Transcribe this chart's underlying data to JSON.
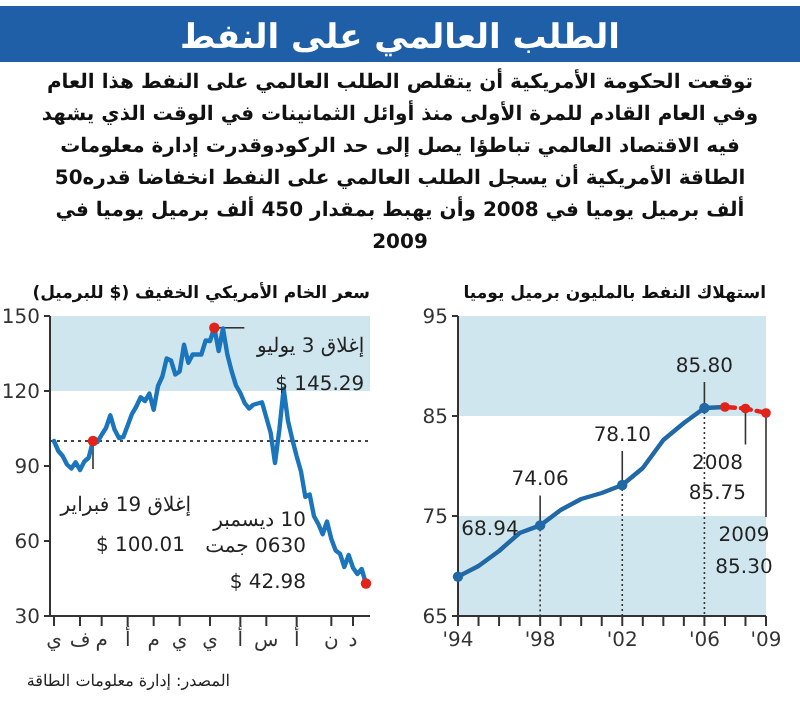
{
  "chart_data": [
    {
      "type": "other",
      "title": "الطلب العالمي على النفط",
      "subtitle": "توقعت الحكومة الأمريكية أن يتقلص الطلب العالمي على النفط هذا العام وفي العام القادم للمرة الأولى منذ أوائل الثمانينات في الوقت الذي يشهد فيه الاقتصاد العالمي تباطؤا يصل إلى حد الركودوقدرت إدارة معلومات الطاقة الأمريكية أن يسجل الطلب العالمي على النفط انخفاضا قدره50 ألف برميل يوميا في 2008 وأن يهبط بمقدار 450 ألف برميل يوميا في 2009",
      "annotations": [
        "المصدر: إدارة معلومات الطاقة"
      ]
    },
    {
      "type": "line",
      "title": "سعر الخام الأمريكي الخفيف ($ للبرميل)",
      "categories": [
        "ي",
        null,
        null,
        null,
        null,
        null,
        "ف",
        null,
        null,
        null,
        null,
        "م",
        null,
        null,
        null,
        null,
        null,
        "أ",
        null,
        null,
        null,
        null,
        null,
        "م",
        null,
        null,
        null,
        null,
        null,
        "ي",
        null,
        null,
        null,
        null,
        null,
        null,
        "ي",
        null,
        null,
        null,
        null,
        null,
        null,
        "أ",
        null,
        null,
        null,
        null,
        null,
        "س",
        null,
        null,
        null,
        null,
        null,
        null,
        "أ",
        null,
        null,
        null,
        null,
        null,
        null,
        null,
        "ن",
        null,
        null,
        null,
        null,
        "د",
        null,
        null,
        null
      ],
      "series": [
        {
          "color": "#1b75bc",
          "values": [
            100,
            96,
            94,
            90.6,
            89,
            91.5,
            88.4,
            91.8,
            93.3,
            100.01,
            99.6,
            102.5,
            105.2,
            110.3,
            104.5,
            101.2,
            101.6,
            106.2,
            110.9,
            113.8,
            117.5,
            116,
            119,
            112.5,
            122,
            125.8,
            133,
            132.2,
            126.6,
            127.8,
            138.5,
            131.3,
            134.6,
            134.6,
            134.6,
            140.2,
            140,
            145.29,
            136,
            145,
            134.6,
            127.9,
            122.2,
            119.2,
            115.2,
            113,
            114.5,
            115,
            115.5,
            109.4,
            103.3,
            91.2,
            104.5,
            120.9,
            108,
            100.6,
            93.9,
            87.8,
            77.7,
            78.6,
            69.9,
            66.8,
            62.7,
            67.8,
            60.8,
            56.2,
            54.9,
            49.6,
            54.4,
            49.3,
            46.8,
            48.8,
            42.98
          ]
        },
        {
          "type": "scatter",
          "color": "#e2231a",
          "values": [
            null,
            null,
            null,
            null,
            null,
            null,
            null,
            null,
            null,
            100.01,
            null,
            null,
            null,
            null,
            null,
            null,
            null,
            null,
            null,
            null,
            null,
            null,
            null,
            null,
            null,
            null,
            null,
            null,
            null,
            null,
            null,
            null,
            null,
            null,
            null,
            null,
            null,
            145.29,
            null,
            null,
            null,
            null,
            null,
            null,
            null,
            null,
            null,
            null,
            null,
            null,
            null,
            null,
            null,
            null,
            null,
            null,
            null,
            null,
            null,
            null,
            null,
            null,
            null,
            null,
            null,
            null,
            null,
            null,
            null,
            null,
            null,
            null,
            42.98
          ]
        }
      ],
      "ylim": [
        30,
        150
      ],
      "yticks": [
        30,
        60,
        90,
        120,
        150
      ],
      "bands": [
        {
          "axis": "y",
          "from": 120,
          "to": 150,
          "color": "#cfe6ee"
        }
      ],
      "ref_lines": [
        {
          "axis": "y",
          "value": 100,
          "color": "#444444",
          "line_style": "dotted"
        }
      ],
      "annotations": [
        "إغلاق 3 يوليو",
        "$ 145.29",
        "إغلاق 19 فبراير",
        "$ 100.01",
        "10 ديسمبر",
        "0630 جمت",
        "$ 42.98"
      ]
    },
    {
      "type": "line",
      "title": "استهلاك النفط بالمليون برميل يوميا",
      "series": [
        {
          "color": "#2168a6",
          "x": [
            1994,
            1995,
            1996,
            1997,
            1998,
            1999,
            2000,
            2001,
            2002,
            2003,
            2004,
            2005,
            2006,
            2007
          ],
          "values": [
            68.94,
            70.0,
            71.5,
            73.3,
            74.06,
            75.6,
            76.7,
            77.3,
            78.1,
            79.8,
            82.6,
            84.3,
            85.8,
            85.9
          ]
        },
        {
          "type": "scatter",
          "color": "#2168a6",
          "x": [
            1994,
            1998,
            2002,
            2006
          ],
          "values": [
            68.94,
            74.06,
            78.1,
            85.8
          ]
        },
        {
          "color": "#e2231a",
          "x": [
            2007,
            2008,
            2009
          ],
          "values": [
            85.9,
            85.75,
            85.3
          ],
          "line_style": "dashed",
          "marker": "circle"
        }
      ],
      "xlim": [
        1994,
        2009
      ],
      "xticks": [
        {
          "value": 1994,
          "label": "'94"
        },
        {
          "value": 1995,
          "label": null
        },
        {
          "value": 1996,
          "label": null
        },
        {
          "value": 1997,
          "label": null
        },
        {
          "value": 1998,
          "label": "'98"
        },
        {
          "value": 1999,
          "label": null
        },
        {
          "value": 2000,
          "label": null
        },
        {
          "value": 2001,
          "label": null
        },
        {
          "value": 2002,
          "label": "'02"
        },
        {
          "value": 2003,
          "label": null
        },
        {
          "value": 2004,
          "label": null
        },
        {
          "value": 2005,
          "label": null
        },
        {
          "value": 2006,
          "label": "'06"
        },
        {
          "value": 2007,
          "label": null
        },
        {
          "value": 2008,
          "label": null
        },
        {
          "value": 2009,
          "label": "'09"
        }
      ],
      "ylim": [
        65,
        95
      ],
      "yticks": [
        65,
        75,
        85,
        95
      ],
      "bands": [
        {
          "axis": "y",
          "from": 65,
          "to": 75,
          "color": "#cfe6ee"
        },
        {
          "axis": "y",
          "from": 85,
          "to": 95,
          "color": "#cfe6ee"
        }
      ],
      "annotations": [
        {
          "text": "68.94",
          "x": 1994,
          "y": 68.94
        },
        {
          "text": "74.06",
          "x": 1998,
          "y": 74.06
        },
        {
          "text": "78.10",
          "x": 2002,
          "y": 78.1
        },
        {
          "text": "85.80",
          "x": 2006,
          "y": 85.8
        },
        {
          "text": "2008",
          "x": 2008,
          "y": 85.75
        },
        "85.75",
        {
          "text": "2009",
          "x": 2009,
          "y": 85.3
        },
        "85.30"
      ]
    }
  ]
}
